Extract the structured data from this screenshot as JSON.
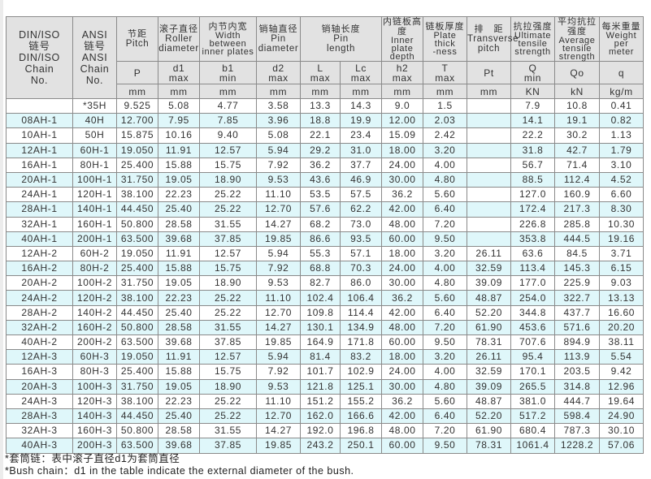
{
  "table": {
    "header": {
      "din": {
        "zh": "DIN/ISO",
        "zh2": "链号",
        "en": [
          "DIN/ISO",
          "Chain",
          "No."
        ]
      },
      "ansi": {
        "zh": "ANSI",
        "zh2": "链号",
        "en": [
          "ANSI",
          "Chain",
          "No."
        ]
      },
      "columns": [
        {
          "zh": "节距",
          "en": [
            "Pitch"
          ],
          "symbol": [
            "P"
          ],
          "unit": "mm"
        },
        {
          "zh": "滚子直径",
          "en": [
            "Roller",
            "diameter"
          ],
          "symbol": [
            "d1",
            "max"
          ],
          "unit": "mm"
        },
        {
          "zh": "内节内宽",
          "en": [
            "Width",
            "between",
            "inner plates"
          ],
          "symbol": [
            "b1",
            "min"
          ],
          "unit": "mm"
        },
        {
          "zh": "销轴直径",
          "en": [
            "Pin",
            "diameter"
          ],
          "symbol": [
            "d2",
            "max"
          ],
          "unit": "mm"
        },
        {
          "zh": "销轴长度",
          "en": [
            "Pin",
            "length"
          ],
          "symbol": [
            "L",
            "max"
          ],
          "unit": "mm",
          "span_group": true
        },
        {
          "symbol": [
            "Lc",
            "max"
          ],
          "unit": "mm"
        },
        {
          "zh": "内链板高度",
          "en": [
            "Inner",
            "plate",
            "depth"
          ],
          "symbol": [
            "h2",
            "max"
          ],
          "unit": "mm"
        },
        {
          "zh": "链板厚度",
          "en": [
            "Plate",
            "thick",
            "-ness"
          ],
          "symbol": [
            "T",
            "max"
          ],
          "unit": "mm"
        },
        {
          "zh": "排　距",
          "en": [
            "Transverse",
            "pitch"
          ],
          "symbol": [
            "Pt"
          ],
          "unit": "mm"
        },
        {
          "zh": "抗拉强度",
          "en": [
            "Ultimate",
            "tensile",
            "strength"
          ],
          "symbol": [
            "Q",
            "min"
          ],
          "unit": "KN"
        },
        {
          "zh": "平均抗拉强度",
          "en": [
            "Average",
            "tensile",
            "strength"
          ],
          "symbol": [
            "Qo"
          ],
          "unit": "kN"
        },
        {
          "zh": "每米重量",
          "en": [
            "Weight",
            "per",
            "meter"
          ],
          "symbol": [
            "q"
          ],
          "unit": "kg/m"
        }
      ]
    },
    "row_colors": {
      "even": "#ffffff",
      "odd": "#dff7fa"
    },
    "rows": [
      [
        "",
        "*35H",
        "9.525",
        "5.08",
        "4.77",
        "3.58",
        "13.3",
        "14.3",
        "9.0",
        "1.5",
        "",
        "7.9",
        "10.8",
        "0.41"
      ],
      [
        "08AH-1",
        "40H",
        "12.700",
        "7.95",
        "7.85",
        "3.96",
        "18.8",
        "19.9",
        "12.00",
        "2.03",
        "",
        "14.1",
        "19.1",
        "0.82"
      ],
      [
        "10AH-1",
        "50H",
        "15.875",
        "10.16",
        "9.40",
        "5.08",
        "22.1",
        "23.4",
        "15.09",
        "2.42",
        "",
        "22.2",
        "30.2",
        "1.13"
      ],
      [
        "12AH-1",
        "60H-1",
        "19.050",
        "11.91",
        "12.57",
        "5.94",
        "29.2",
        "31.0",
        "18.00",
        "3.20",
        "",
        "31.8",
        "42.7",
        "1.79"
      ],
      [
        "16AH-1",
        "80H-1",
        "25.400",
        "15.88",
        "15.75",
        "7.92",
        "36.2",
        "37.7",
        "24.00",
        "4.00",
        "",
        "56.7",
        "71.4",
        "3.10"
      ],
      [
        "20AH-1",
        "100H-1",
        "31.750",
        "19.05",
        "18.90",
        "9.53",
        "43.6",
        "46.9",
        "30.00",
        "4.80",
        "",
        "88.5",
        "112.4",
        "4.52"
      ],
      [
        "24AH-1",
        "120H-1",
        "38.100",
        "22.23",
        "25.22",
        "11.10",
        "53.5",
        "57.5",
        "36.2",
        "5.60",
        "",
        "127.0",
        "160.9",
        "6.60"
      ],
      [
        "28AH-1",
        "140H-1",
        "44.450",
        "25.40",
        "25.22",
        "12.70",
        "57.6",
        "62.2",
        "42.00",
        "6.40",
        "",
        "172.4",
        "217.3",
        "8.30"
      ],
      [
        "32AH-1",
        "160H-1",
        "50.800",
        "28.58",
        "31.55",
        "14.27",
        "68.2",
        "73.0",
        "48.00",
        "7.20",
        "",
        "226.8",
        "285.8",
        "10.30"
      ],
      [
        "40AH-1",
        "200H-1",
        "63.500",
        "39.68",
        "37.85",
        "19.85",
        "86.6",
        "93.5",
        "60.00",
        "9.50",
        "",
        "353.8",
        "444.5",
        "19.16"
      ],
      [
        "12AH-2",
        "60H-2",
        "19.050",
        "11.91",
        "12.57",
        "5.94",
        "55.3",
        "57.1",
        "18.00",
        "3.20",
        "26.11",
        "63.6",
        "84.5",
        "3.71"
      ],
      [
        "16AH-2",
        "80H-2",
        "25.400",
        "15.88",
        "15.75",
        "7.92",
        "68.8",
        "70.3",
        "24.00",
        "4.00",
        "32.59",
        "113.4",
        "145.3",
        "6.15"
      ],
      [
        "20AH-2",
        "100H-2",
        "31.750",
        "19.05",
        "18.90",
        "9.53",
        "82.7",
        "86.0",
        "30.00",
        "4.80",
        "39.09",
        "177.0",
        "225.9",
        "9.03"
      ],
      [
        "24AH-2",
        "120H-2",
        "38.100",
        "22.23",
        "25.22",
        "11.10",
        "102.4",
        "106.4",
        "36.2",
        "5.60",
        "48.87",
        "254.0",
        "322.7",
        "13.13"
      ],
      [
        "28AH-2",
        "140H-2",
        "44.450",
        "25.40",
        "25.22",
        "12.70",
        "109.8",
        "114.4",
        "42.00",
        "6.40",
        "52.20",
        "344.8",
        "437.7",
        "16.60"
      ],
      [
        "32AH-2",
        "160H-2",
        "50.800",
        "28.58",
        "31.55",
        "14.27",
        "130.1",
        "134.9",
        "48.00",
        "7.20",
        "61.90",
        "453.6",
        "571.6",
        "20.20"
      ],
      [
        "40AH-2",
        "200H-2",
        "63.500",
        "39.68",
        "37.85",
        "19.85",
        "164.9",
        "171.8",
        "60.00",
        "9.50",
        "78.31",
        "707.6",
        "894.9",
        "38.11"
      ],
      [
        "12AH-3",
        "60H-3",
        "19.050",
        "11.91",
        "12.57",
        "5.94",
        "81.4",
        "83.2",
        "18.00",
        "3.20",
        "26.11",
        "95.4",
        "113.9",
        "5.54"
      ],
      [
        "16AH-3",
        "80H-3",
        "25.400",
        "15.88",
        "15.75",
        "7.92",
        "101.7",
        "102.9",
        "24.00",
        "4.00",
        "32.59",
        "170.1",
        "203.5",
        "9.42"
      ],
      [
        "20AH-3",
        "100H-3",
        "31.750",
        "19.05",
        "18.90",
        "9.53",
        "121.8",
        "125.1",
        "30.00",
        "4.80",
        "39.09",
        "265.5",
        "314.8",
        "12.96"
      ],
      [
        "24AH-3",
        "120H-3",
        "38.100",
        "22.23",
        "25.22",
        "11.10",
        "151.2",
        "155.2",
        "36.2",
        "5.60",
        "48.87",
        "381.0",
        "444.7",
        "19.64"
      ],
      [
        "28AH-3",
        "140H-3",
        "44.450",
        "25.40",
        "25.22",
        "12.70",
        "162.0",
        "166.6",
        "42.00",
        "6.40",
        "52.20",
        "517.2",
        "598.4",
        "24.90"
      ],
      [
        "32AH-3",
        "160H-3",
        "50.800",
        "28.58",
        "31.55",
        "14.27",
        "192.0",
        "196.8",
        "48.00",
        "7.20",
        "61.90",
        "680.4",
        "787.3",
        "30.10"
      ],
      [
        "40AH-3",
        "200H-3",
        "63.500",
        "39.68",
        "37.85",
        "19.85",
        "243.2",
        "250.1",
        "60.00",
        "9.50",
        "78.31",
        "1061.4",
        "1228.2",
        "57.06"
      ]
    ]
  },
  "notes": {
    "zh": "*套筒链：表中滚子直径d1为套筒直径",
    "en": "*Bush chain：d1 in the table indicate the external diameter of the bush."
  }
}
